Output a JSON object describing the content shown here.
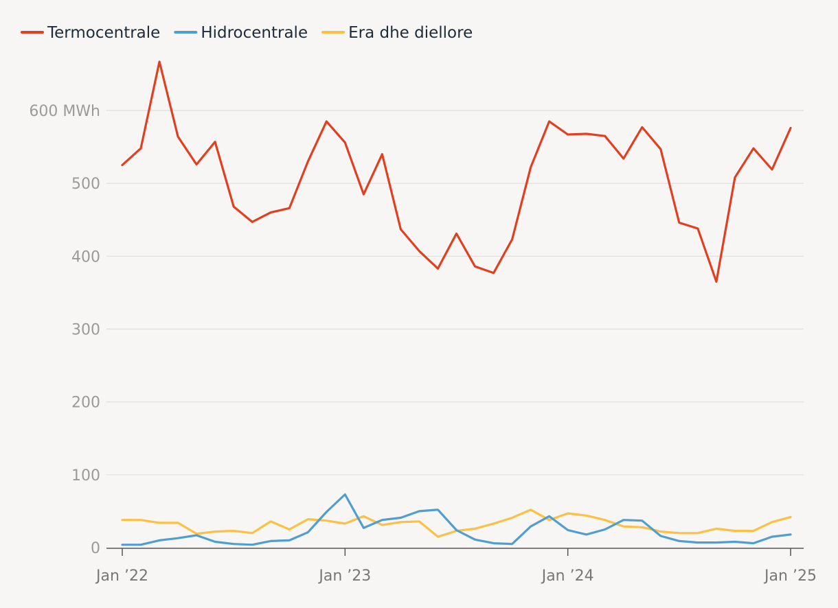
{
  "chart_data": {
    "type": "line",
    "title": "",
    "xlabel": "",
    "ylabel": "",
    "y_unit": "MWh",
    "ylim": [
      0,
      660
    ],
    "y_ticks": [
      {
        "value": 0,
        "label": "0"
      },
      {
        "value": 100,
        "label": "100"
      },
      {
        "value": 200,
        "label": "200"
      },
      {
        "value": 300,
        "label": "300"
      },
      {
        "value": 400,
        "label": "400"
      },
      {
        "value": 500,
        "label": "500"
      },
      {
        "value": 600,
        "label": "600 MWh"
      }
    ],
    "x_ticks": [
      {
        "date": "2022-01",
        "label": "Jan ’22"
      },
      {
        "date": "2023-01",
        "label": "Jan ’23"
      },
      {
        "date": "2024-01",
        "label": "Jan ’24"
      },
      {
        "date": "2025-01",
        "label": "Jan ’25"
      }
    ],
    "grid": true,
    "legend_position": "top-left",
    "x": [
      "2022-01",
      "2022-02",
      "2022-03",
      "2022-04",
      "2022-05",
      "2022-06",
      "2022-07",
      "2022-08",
      "2022-09",
      "2022-10",
      "2022-11",
      "2022-12",
      "2023-01",
      "2023-02",
      "2023-03",
      "2023-04",
      "2023-05",
      "2023-06",
      "2023-07",
      "2023-08",
      "2023-09",
      "2023-10",
      "2023-11",
      "2023-12",
      "2024-01",
      "2024-02",
      "2024-03",
      "2024-04",
      "2024-05",
      "2024-06",
      "2024-07",
      "2024-08",
      "2024-09",
      "2024-10",
      "2024-11",
      "2024-12",
      "2025-01"
    ],
    "series": [
      {
        "name": "Termocentrale",
        "color": "#e0401f",
        "values": [
          525,
          548,
          667,
          564,
          526,
          557,
          468,
          447,
          460,
          466,
          530,
          585,
          556,
          485,
          540,
          437,
          407,
          383,
          431,
          386,
          377,
          423,
          522,
          585,
          567,
          568,
          565,
          534,
          577,
          547,
          446,
          438,
          365,
          508,
          548,
          519,
          576
        ]
      },
      {
        "name": "Hidrocentrale",
        "color": "#509ecf",
        "values": [
          4,
          4,
          10,
          13,
          17,
          8,
          5,
          4,
          9,
          10,
          21,
          49,
          73,
          27,
          38,
          41,
          50,
          52,
          24,
          11,
          6,
          5,
          29,
          43,
          24,
          18,
          25,
          38,
          37,
          16,
          9,
          7,
          7,
          8,
          6,
          15,
          18
        ]
      },
      {
        "name": "Era dhe diellore",
        "color": "#fcc044",
        "values": [
          38,
          38,
          34,
          34,
          19,
          22,
          23,
          20,
          36,
          25,
          39,
          37,
          33,
          43,
          31,
          35,
          36,
          15,
          23,
          26,
          33,
          41,
          52,
          38,
          47,
          44,
          38,
          29,
          28,
          22,
          20,
          20,
          26,
          23,
          23,
          35,
          42
        ]
      }
    ]
  }
}
